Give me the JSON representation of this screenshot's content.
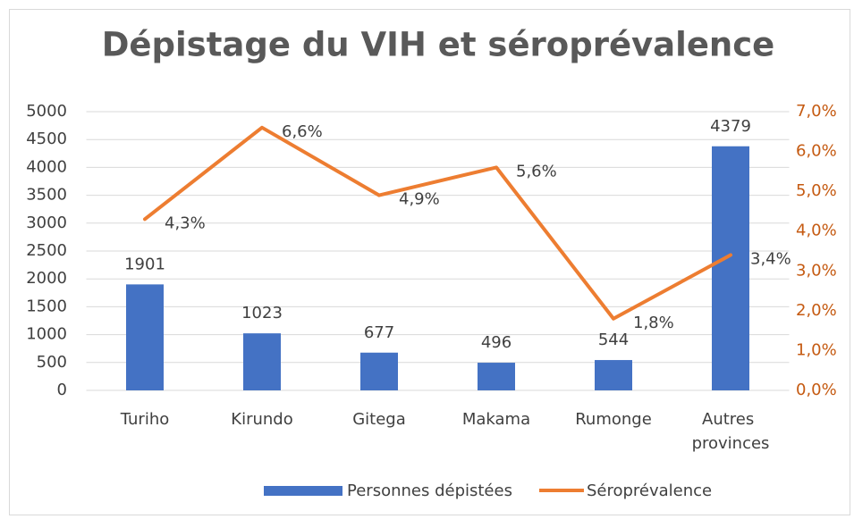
{
  "chart_data": {
    "type": "bar",
    "title": "Dépistage du VIH et séroprévalence",
    "categories": [
      "Turiho",
      "Kirundo",
      "Gitega",
      "Makama",
      "Rumonge",
      "Autres provinces"
    ],
    "series": [
      {
        "name": "Personnes dépistées",
        "color": "#4472c4",
        "type": "bar",
        "axis": "y",
        "values": [
          1901,
          1023,
          677,
          496,
          544,
          4379
        ]
      },
      {
        "name": "Séroprévalence",
        "color": "#ed7d31",
        "type": "line",
        "axis": "y2",
        "values": [
          4.3,
          6.6,
          4.9,
          5.6,
          1.8,
          3.4
        ],
        "value_labels": [
          "4,3%",
          "6,6%",
          "4,9%",
          "5,6%",
          "1,8%",
          "3,4%"
        ]
      }
    ],
    "ylim": [
      0,
      5000
    ],
    "yticks": [
      0,
      500,
      1000,
      1500,
      2000,
      2500,
      3000,
      3500,
      4000,
      4500,
      5000
    ],
    "y2lim": [
      0,
      7
    ],
    "y2ticks": [
      {
        "value": 0,
        "label": "0,0%"
      },
      {
        "value": 1,
        "label": "1,0%"
      },
      {
        "value": 2,
        "label": "2,0%"
      },
      {
        "value": 3,
        "label": "3,0%"
      },
      {
        "value": 4,
        "label": "4,0%"
      },
      {
        "value": 5,
        "label": "5,0%"
      },
      {
        "value": 6,
        "label": "6,0%"
      },
      {
        "value": 7,
        "label": "7,0%"
      }
    ],
    "y2_color": "#c55a11",
    "grid": true,
    "legend": "bottom"
  }
}
